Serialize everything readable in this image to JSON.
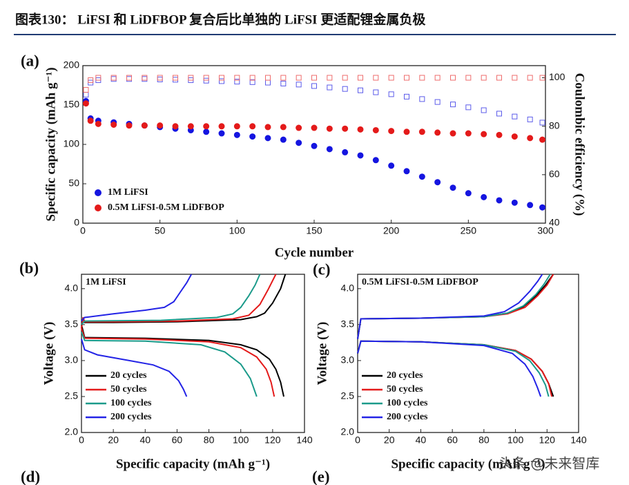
{
  "header": {
    "title": "图表130： LiFSI 和 LiDFBOP 复合后比单独的 LiFSI 更适配锂金属负极"
  },
  "watermark": "头条 @未来智库",
  "cropped_panel_labels": [
    "(d)",
    "(e)"
  ],
  "chart_data": [
    {
      "type": "scatter",
      "panel": "(a)",
      "x_label": "Cycle number",
      "y_label": "Specific capacity (mAh g⁻¹)",
      "y2_label": "Coulombic efficiency (%)",
      "xlim": [
        0,
        300
      ],
      "xticks": [
        0,
        50,
        100,
        150,
        200,
        250,
        300
      ],
      "ylim": [
        0,
        200
      ],
      "yticks": [
        0,
        50,
        100,
        150,
        200
      ],
      "y2lim": [
        40,
        105
      ],
      "y2ticks": [
        40,
        60,
        80,
        100
      ],
      "legend": "lower left",
      "x": [
        2,
        5,
        10,
        20,
        30,
        40,
        50,
        60,
        70,
        80,
        90,
        100,
        110,
        120,
        130,
        140,
        150,
        160,
        170,
        180,
        190,
        200,
        210,
        220,
        230,
        240,
        250,
        260,
        270,
        280,
        290,
        298
      ],
      "series": [
        {
          "name": "1M LiFSI",
          "color": "#1515e0",
          "filled": true,
          "values": [
            155,
            133,
            130,
            128,
            126,
            124,
            122,
            120,
            118,
            116,
            114,
            112,
            110,
            108,
            106,
            102,
            98,
            94,
            90,
            86,
            80,
            73,
            66,
            59,
            52,
            45,
            38,
            33,
            29,
            26,
            23,
            20
          ]
        },
        {
          "name": "0.5M LiFSI-0.5M LiDFBOP",
          "color": "#e41a1a",
          "filled": true,
          "values": [
            152,
            130,
            126,
            125,
            124,
            124,
            124,
            123,
            123,
            123,
            123,
            123,
            123,
            122,
            122,
            121,
            121,
            120,
            120,
            119,
            118,
            117,
            116,
            116,
            115,
            114,
            114,
            113,
            112,
            110,
            108,
            106
          ]
        },
        {
          "color": "#5b5bea",
          "filled": false,
          "axis": "y2",
          "values": [
            93,
            98,
            99,
            99.5,
            99.5,
            99.5,
            99.3,
            99.2,
            99,
            98.8,
            98.6,
            98.4,
            98.2,
            98,
            97.6,
            97.2,
            96.6,
            96,
            95.4,
            94.8,
            94,
            93.2,
            92.2,
            91.2,
            90,
            89,
            87.8,
            86.6,
            85.2,
            84,
            82.8,
            81.5
          ]
        },
        {
          "color": "#ee6b6b",
          "filled": false,
          "axis": "y2",
          "values": [
            95,
            99,
            100,
            100,
            100,
            100,
            100,
            100,
            100,
            100,
            100,
            100,
            100,
            100,
            100,
            100,
            100,
            100,
            100,
            100,
            100,
            100,
            100,
            100,
            100,
            100,
            100,
            100,
            100,
            100,
            100,
            100
          ]
        }
      ]
    },
    {
      "type": "line",
      "panel": "(b)",
      "annotation": "1M LiFSI",
      "x_label": "Specific capacity (mAh g⁻¹)",
      "y_label": "Voltage (V)",
      "xlim": [
        0,
        140
      ],
      "xticks": [
        0,
        20,
        40,
        60,
        80,
        100,
        120,
        140
      ],
      "ylim": [
        2,
        4.2
      ],
      "yticks": [
        {
          "value": 2,
          "label": "2.0"
        },
        2.5,
        {
          "value": 3,
          "label": "3.0"
        },
        3.5,
        {
          "value": 4,
          "label": "4.0"
        }
      ],
      "legend": "lower left",
      "series": [
        {
          "name": "20 cycles",
          "color": "#000000",
          "charge": {
            "x": [
              0,
              1,
              2,
              20,
              60,
              100,
              110,
              115,
              120,
              125,
              128
            ],
            "values": [
              3.45,
              3.6,
              3.53,
              3.53,
              3.54,
              3.57,
              3.61,
              3.66,
              3.8,
              4.0,
              4.2
            ]
          },
          "discharge": {
            "x": [
              0,
              2,
              40,
              80,
              100,
              110,
              118,
              122,
              125,
              127
            ],
            "values": [
              3.5,
              3.32,
              3.31,
              3.28,
              3.22,
              3.15,
              3.02,
              2.88,
              2.7,
              2.5
            ]
          }
        },
        {
          "name": "50 cycles",
          "color": "#e41a1a",
          "charge": {
            "x": [
              0,
              1,
              2,
              20,
              60,
              95,
              105,
              112,
              117,
              122
            ],
            "values": [
              3.45,
              3.6,
              3.54,
              3.54,
              3.55,
              3.58,
              3.63,
              3.78,
              3.98,
              4.2
            ]
          },
          "discharge": {
            "x": [
              0,
              2,
              40,
              80,
              100,
              110,
              116,
              119,
              121
            ],
            "values": [
              3.45,
              3.31,
              3.3,
              3.26,
              3.18,
              3.05,
              2.88,
              2.7,
              2.5
            ]
          }
        },
        {
          "name": "100 cycles",
          "color": "#1a9a8a",
          "charge": {
            "x": [
              0,
              2,
              50,
              85,
              95,
              100,
              105,
              109,
              112
            ],
            "values": [
              3.5,
              3.55,
              3.56,
              3.6,
              3.65,
              3.74,
              3.9,
              4.05,
              4.2
            ]
          },
          "discharge": {
            "x": [
              0,
              2,
              40,
              75,
              90,
              100,
              106,
              110
            ],
            "values": [
              3.4,
              3.28,
              3.27,
              3.22,
              3.12,
              2.95,
              2.75,
              2.5
            ]
          }
        },
        {
          "name": "200 cycles",
          "color": "#2323e6",
          "charge": {
            "x": [
              0,
              2,
              20,
              40,
              52,
              58,
              62,
              66,
              69
            ],
            "values": [
              3.55,
              3.6,
              3.65,
              3.7,
              3.74,
              3.82,
              3.95,
              4.08,
              4.2
            ]
          },
          "discharge": {
            "x": [
              0,
              2,
              10,
              30,
              45,
              55,
              61,
              64,
              66
            ],
            "values": [
              3.3,
              3.15,
              3.08,
              3.0,
              2.94,
              2.85,
              2.72,
              2.6,
              2.5
            ]
          }
        }
      ]
    },
    {
      "type": "line",
      "panel": "(c)",
      "annotation": "0.5M LiFSI-0.5M LiDFBOP",
      "x_label": "Specific capacity (mAh g⁻¹)",
      "y_label": "Voltage (V)",
      "xlim": [
        0,
        140
      ],
      "xticks": [
        0,
        20,
        40,
        60,
        80,
        100,
        120,
        140
      ],
      "ylim": [
        2,
        4.2
      ],
      "yticks": [
        {
          "value": 2,
          "label": "2.0"
        },
        2.5,
        {
          "value": 3,
          "label": "3.0"
        },
        3.5,
        {
          "value": 4,
          "label": "4.0"
        }
      ],
      "legend": "lower left",
      "series": [
        {
          "name": "20 cycles",
          "color": "#000000",
          "charge": {
            "x": [
              0,
              2,
              40,
              80,
              95,
              105,
              113,
              119,
              124
            ],
            "values": [
              3.3,
              3.58,
              3.59,
              3.61,
              3.66,
              3.75,
              3.9,
              4.05,
              4.2
            ]
          },
          "discharge": {
            "x": [
              0,
              2,
              40,
              80,
              100,
              110,
              117,
              121,
              124
            ],
            "values": [
              3.1,
              3.27,
              3.26,
              3.22,
              3.14,
              3.02,
              2.85,
              2.68,
              2.5
            ]
          }
        },
        {
          "name": "50 cycles",
          "color": "#e41a1a",
          "charge": {
            "x": [
              0,
              2,
              40,
              80,
              95,
              106,
              114,
              120,
              124
            ],
            "values": [
              3.3,
              3.58,
              3.59,
              3.61,
              3.65,
              3.74,
              3.9,
              4.05,
              4.2
            ]
          },
          "discharge": {
            "x": [
              0,
              2,
              40,
              80,
              100,
              110,
              117,
              121,
              123
            ],
            "values": [
              3.1,
              3.27,
              3.26,
              3.22,
              3.14,
              3.02,
              2.85,
              2.68,
              2.5
            ]
          }
        },
        {
          "name": "100 cycles",
          "color": "#1a9a8a",
          "charge": {
            "x": [
              0,
              2,
              40,
              80,
              95,
              105,
              113,
              118,
              122
            ],
            "values": [
              3.3,
              3.58,
              3.59,
              3.61,
              3.66,
              3.76,
              3.92,
              4.06,
              4.2
            ]
          },
          "discharge": {
            "x": [
              0,
              2,
              40,
              80,
              100,
              109,
              115,
              119,
              121
            ],
            "values": [
              3.1,
              3.27,
              3.26,
              3.22,
              3.13,
              3.0,
              2.83,
              2.66,
              2.5
            ]
          }
        },
        {
          "name": "200 cycles",
          "color": "#2323e6",
          "charge": {
            "x": [
              0,
              2,
              40,
              80,
              93,
              102,
              109,
              114,
              117
            ],
            "values": [
              3.3,
              3.58,
              3.59,
              3.62,
              3.68,
              3.8,
              3.96,
              4.1,
              4.2
            ]
          },
          "discharge": {
            "x": [
              0,
              2,
              40,
              80,
              98,
              106,
              111,
              114,
              116
            ],
            "values": [
              3.1,
              3.27,
              3.26,
              3.21,
              3.1,
              2.95,
              2.78,
              2.62,
              2.5
            ]
          }
        }
      ]
    }
  ]
}
